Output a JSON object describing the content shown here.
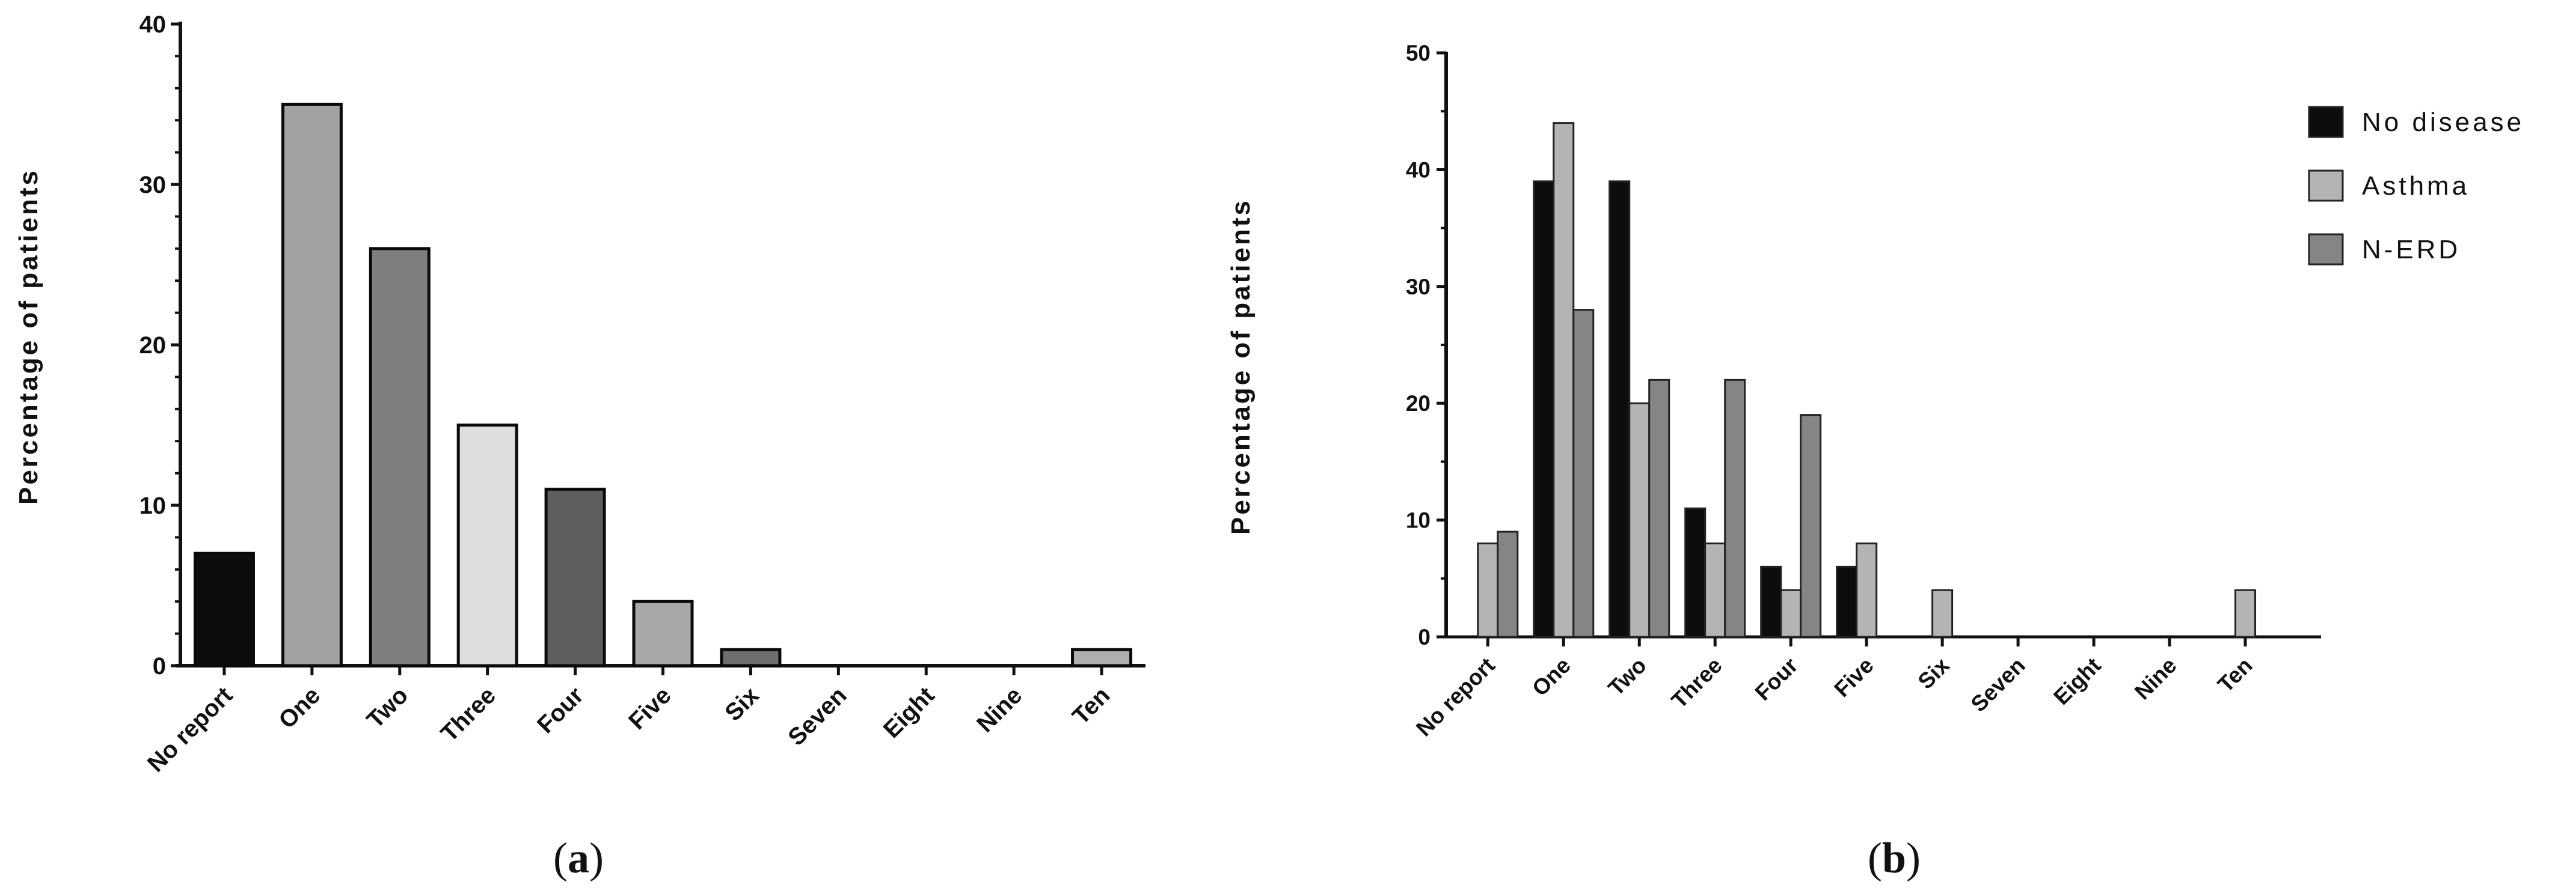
{
  "chart_data": [
    {
      "type": "bar",
      "panel_label": "a",
      "ylabel": "Percentage of patients",
      "ylim": [
        0,
        40
      ],
      "yticks": [
        0,
        10,
        20,
        30,
        40
      ],
      "categories": [
        "No report",
        "One",
        "Two",
        "Three",
        "Four",
        "Five",
        "Six",
        "Seven",
        "Eight",
        "Nine",
        "Ten"
      ],
      "values": [
        7,
        35,
        26,
        15,
        11,
        4,
        1,
        0,
        0,
        0,
        1
      ],
      "bar_colors": [
        "#0d0d0d",
        "#a2a2a2",
        "#7f7f7f",
        "#dedede",
        "#5e5e5e",
        "#a8a8a8",
        "#6f6f6f",
        "#9a9a9a",
        "#9a9a9a",
        "#9a9a9a",
        "#b0b0b0"
      ],
      "grid": false
    },
    {
      "type": "bar",
      "panel_label": "b",
      "ylabel": "Percentage of patients",
      "ylim": [
        0,
        50
      ],
      "yticks": [
        0,
        10,
        20,
        30,
        40,
        50
      ],
      "categories": [
        "No report",
        "One",
        "Two",
        "Three",
        "Four",
        "Five",
        "Six",
        "Seven",
        "Eight",
        "Nine",
        "Ten"
      ],
      "series": [
        {
          "name": "No disease",
          "color": "#0d0d0d",
          "values": [
            0,
            39,
            39,
            11,
            6,
            6,
            0,
            0,
            0,
            0,
            0
          ]
        },
        {
          "name": "Asthma",
          "color": "#b4b4b4",
          "values": [
            8,
            44,
            20,
            8,
            4,
            8,
            4,
            0,
            0,
            0,
            4
          ]
        },
        {
          "name": "N-ERD",
          "color": "#858585",
          "values": [
            9,
            28,
            22,
            22,
            19,
            0,
            0,
            0,
            0,
            0,
            0
          ]
        }
      ],
      "legend_position": "top-right",
      "grid": false
    }
  ],
  "captions": {
    "a": "a",
    "b": "b"
  }
}
